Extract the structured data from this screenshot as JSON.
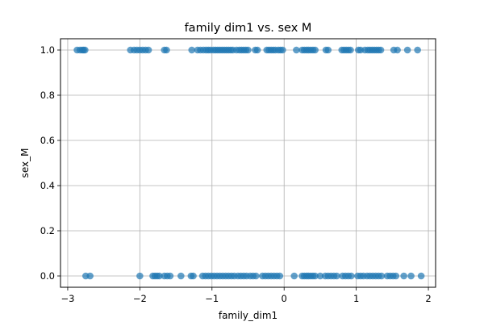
{
  "chart_data": {
    "type": "scatter",
    "title": "family dim1 vs. sex M",
    "xlabel": "family_dim1",
    "ylabel": "sex_M",
    "xlim": [
      -3.1,
      2.1
    ],
    "ylim": [
      -0.05,
      1.05
    ],
    "xticks": [
      -3,
      -2,
      -1,
      0,
      1,
      2
    ],
    "xtick_labels": [
      "−3",
      "−2",
      "−1",
      "0",
      "1",
      "2"
    ],
    "yticks": [
      0.0,
      0.2,
      0.4,
      0.6,
      0.8,
      1.0
    ],
    "ytick_labels": [
      "0.0",
      "0.2",
      "0.4",
      "0.6",
      "0.8",
      "1.0"
    ],
    "grid": true,
    "marker_color": "#1f77b4",
    "series": [
      {
        "x": [
          -2.87,
          -2.83,
          -2.8,
          -2.78,
          -2.76,
          -2.13,
          -2.08,
          -2.04,
          -2.0,
          -1.96,
          -1.92,
          -1.88,
          -1.66,
          -1.63,
          -1.28,
          -1.2,
          -1.16,
          -1.12,
          -1.08,
          -1.05,
          -1.02,
          -0.98,
          -0.95,
          -0.92,
          -0.89,
          -0.86,
          -0.83,
          -0.8,
          -0.77,
          -0.74,
          -0.71,
          -0.66,
          -0.62,
          -0.59,
          -0.56,
          -0.53,
          -0.5,
          -0.4,
          -0.37,
          -0.24,
          -0.21,
          -0.18,
          -0.15,
          -0.12,
          -0.08,
          -0.05,
          -0.02,
          0.17,
          0.25,
          0.28,
          0.31,
          0.34,
          0.37,
          0.4,
          0.43,
          0.58,
          0.61,
          0.8,
          0.83,
          0.86,
          0.89,
          0.92,
          1.03,
          1.06,
          1.12,
          1.16,
          1.19,
          1.22,
          1.25,
          1.28,
          1.31,
          1.34,
          1.52,
          1.57,
          1.71,
          1.85
        ],
        "y": [
          1,
          1,
          1,
          1,
          1,
          1,
          1,
          1,
          1,
          1,
          1,
          1,
          1,
          1,
          1,
          1,
          1,
          1,
          1,
          1,
          1,
          1,
          1,
          1,
          1,
          1,
          1,
          1,
          1,
          1,
          1,
          1,
          1,
          1,
          1,
          1,
          1,
          1,
          1,
          1,
          1,
          1,
          1,
          1,
          1,
          1,
          1,
          1,
          1,
          1,
          1,
          1,
          1,
          1,
          1,
          1,
          1,
          1,
          1,
          1,
          1,
          1,
          1,
          1,
          1,
          1,
          1,
          1,
          1,
          1,
          1,
          1,
          1,
          1,
          1,
          1
        ]
      },
      {
        "x": [
          -2.75,
          -2.69,
          -2.0,
          -1.82,
          -1.79,
          -1.76,
          -1.73,
          -1.66,
          -1.62,
          -1.58,
          -1.43,
          -1.29,
          -1.26,
          -1.13,
          -1.09,
          -1.05,
          -1.01,
          -0.97,
          -0.93,
          -0.89,
          -0.85,
          -0.81,
          -0.77,
          -0.73,
          -0.69,
          -0.64,
          -0.6,
          -0.56,
          -0.52,
          -0.47,
          -0.43,
          -0.39,
          -0.3,
          -0.26,
          -0.22,
          -0.18,
          -0.14,
          -0.1,
          -0.06,
          0.14,
          0.25,
          0.28,
          0.31,
          0.34,
          0.37,
          0.4,
          0.43,
          0.5,
          0.57,
          0.61,
          0.65,
          0.69,
          0.73,
          0.81,
          0.85,
          0.89,
          0.93,
          1.02,
          1.06,
          1.1,
          1.15,
          1.19,
          1.23,
          1.27,
          1.31,
          1.35,
          1.43,
          1.47,
          1.51,
          1.55,
          1.66,
          1.76,
          1.9
        ],
        "y": [
          0,
          0,
          0,
          0,
          0,
          0,
          0,
          0,
          0,
          0,
          0,
          0,
          0,
          0,
          0,
          0,
          0,
          0,
          0,
          0,
          0,
          0,
          0,
          0,
          0,
          0,
          0,
          0,
          0,
          0,
          0,
          0,
          0,
          0,
          0,
          0,
          0,
          0,
          0,
          0,
          0,
          0,
          0,
          0,
          0,
          0,
          0,
          0,
          0,
          0,
          0,
          0,
          0,
          0,
          0,
          0,
          0,
          0,
          0,
          0,
          0,
          0,
          0,
          0,
          0,
          0,
          0,
          0,
          0,
          0,
          0,
          0,
          0
        ]
      }
    ]
  }
}
